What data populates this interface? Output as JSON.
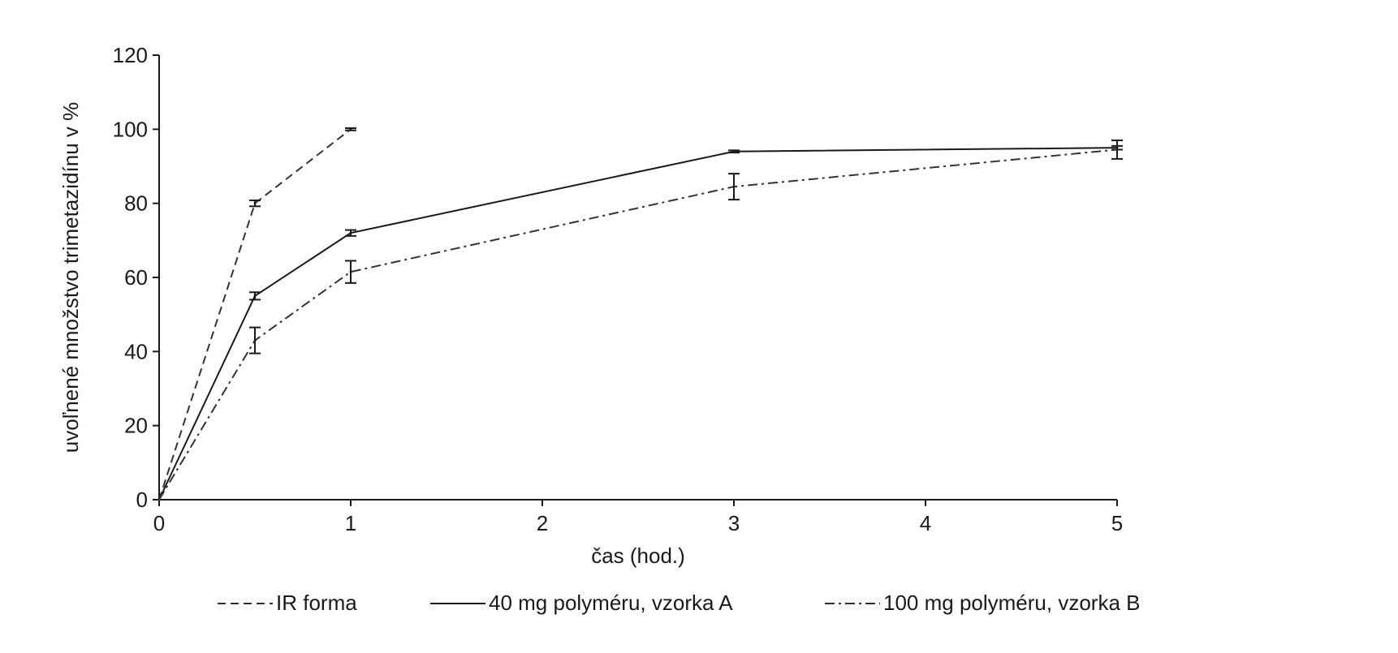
{
  "chart_data": {
    "type": "line",
    "title": "",
    "xlabel": "čas (hod.)",
    "ylabel": "uvoľnené množstvo trimetazidínu v %",
    "xlim": [
      0,
      5
    ],
    "ylim": [
      0,
      120
    ],
    "x_ticks": [
      0,
      1,
      2,
      3,
      4,
      5
    ],
    "y_ticks": [
      0,
      20,
      40,
      60,
      80,
      100,
      120
    ],
    "grid": false,
    "legend_position": "bottom",
    "series": [
      {
        "name": "IR forma",
        "line_style": "dashed",
        "color": "#333333",
        "x": [
          0,
          0.5,
          1
        ],
        "y": [
          0,
          80,
          100
        ],
        "error": [
          0,
          0.8,
          0.3
        ]
      },
      {
        "name": "40 mg polyméru, vzorka A",
        "line_style": "solid",
        "color": "#1a1a1a",
        "x": [
          0,
          0.5,
          1,
          3,
          5
        ],
        "y": [
          0,
          55,
          72,
          94,
          95
        ],
        "error": [
          0,
          1,
          0.8,
          0.3,
          0.5
        ]
      },
      {
        "name": "100 mg polyméru, vzorka B",
        "line_style": "dash-dot",
        "color": "#333333",
        "x": [
          0,
          0.5,
          1,
          3,
          5
        ],
        "y": [
          0,
          43,
          61.5,
          84.5,
          94.5
        ],
        "error": [
          0,
          3.5,
          3,
          3.5,
          2.5
        ]
      }
    ]
  }
}
